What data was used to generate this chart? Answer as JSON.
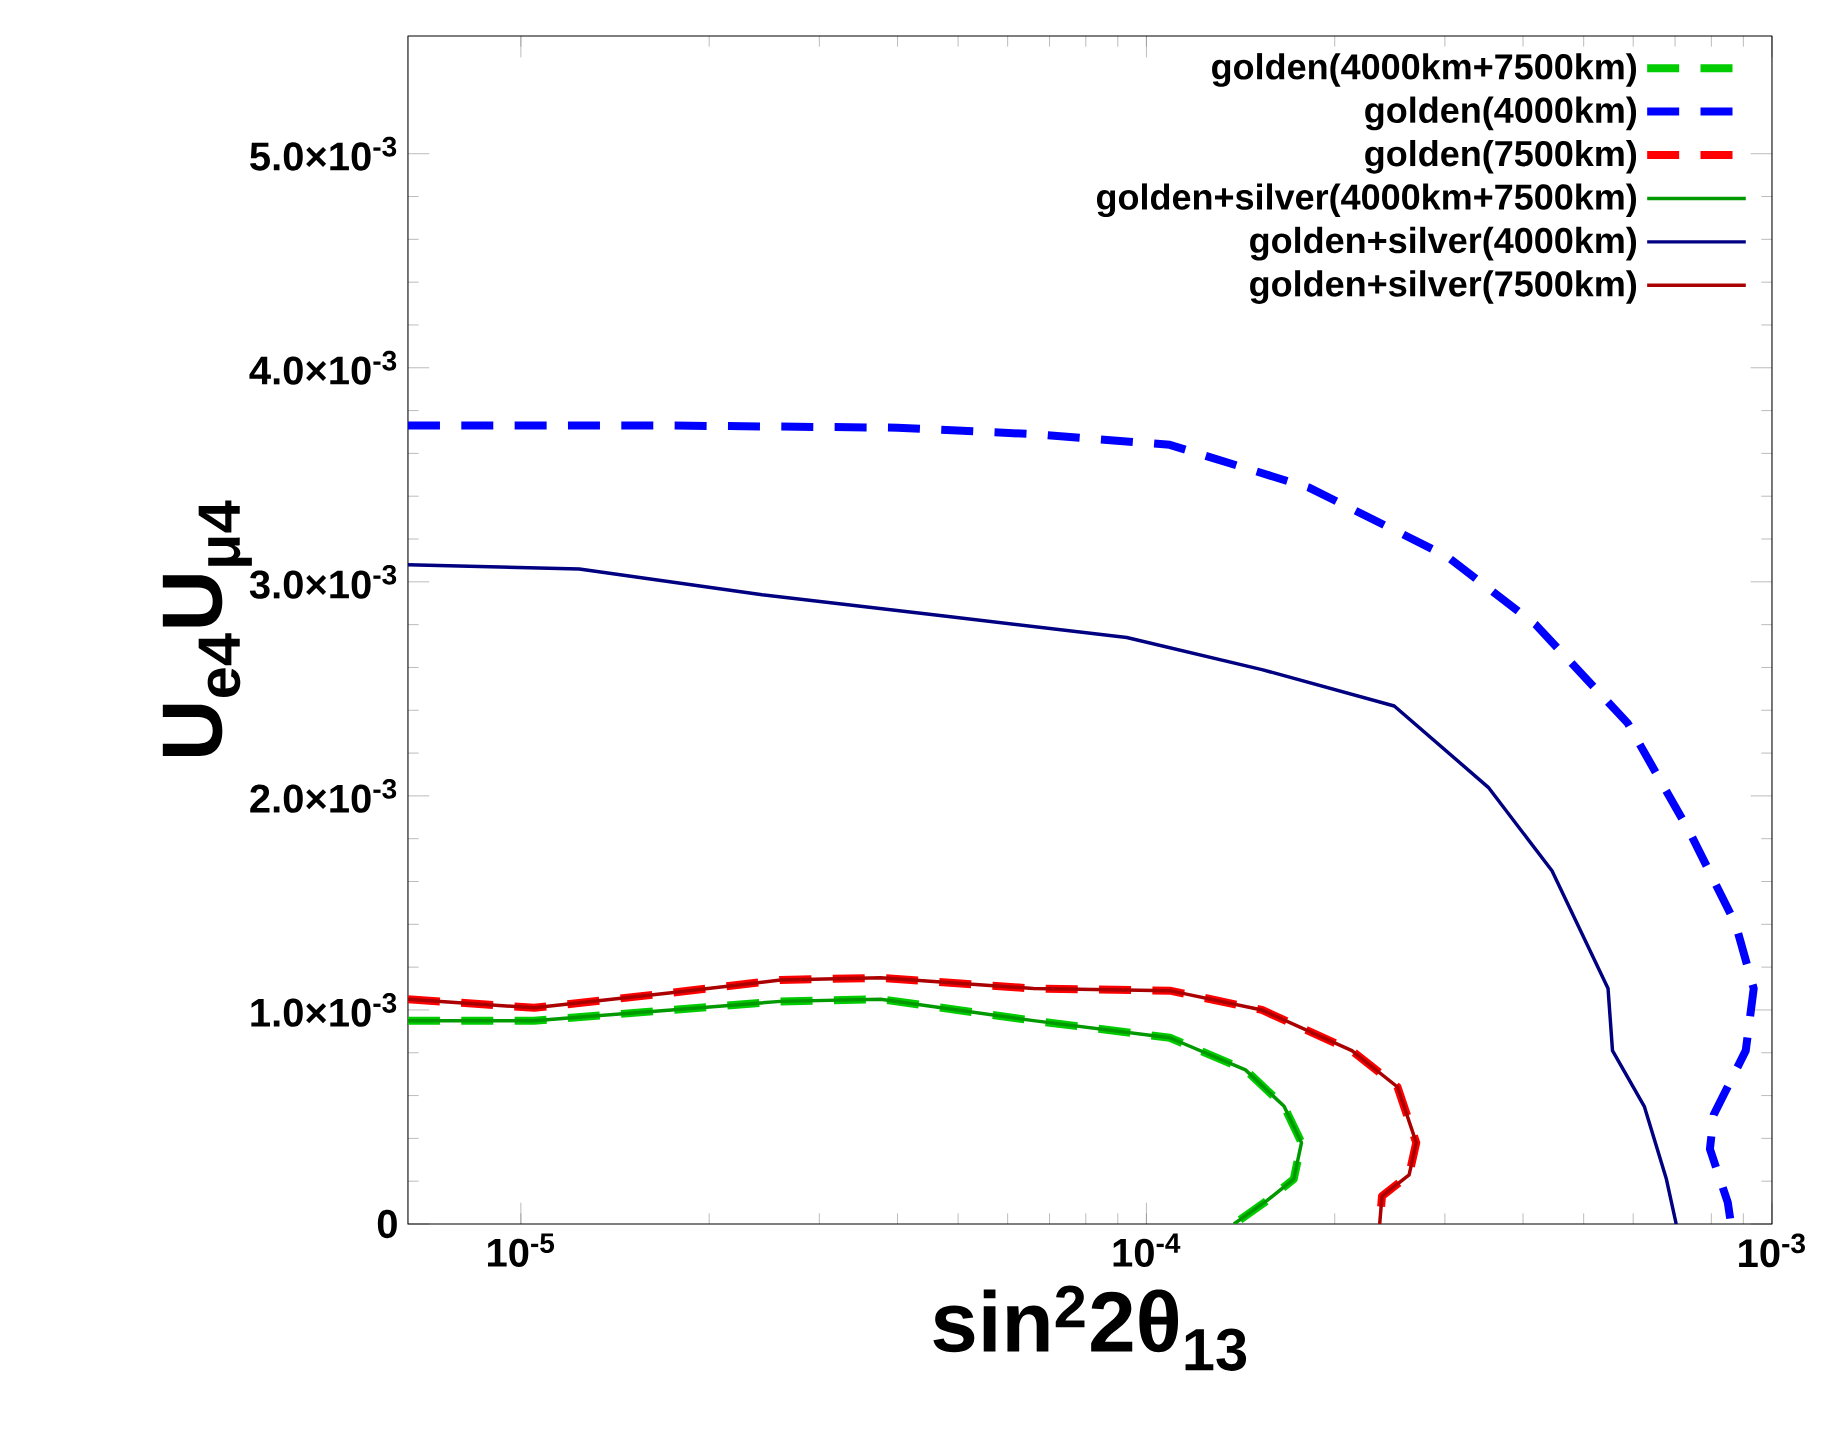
{
  "chart_data": {
    "type": "line",
    "xlabel": "sin$^{2}$2θ$_{13}$",
    "ylabel": "U$_{e4}$U$_{μ4}$",
    "log": "x",
    "xlim": [
      6.6e-06,
      0.001
    ],
    "xticks": [
      {
        "value": 1e-05,
        "label": "10$^{-5}$"
      },
      {
        "value": 0.0001,
        "label": "10$^{-4}$"
      },
      {
        "value": 0.001,
        "label": "10$^{-3}$"
      }
    ],
    "ylim": [
      0,
      0.00555
    ],
    "yticks": [
      0,
      {
        "value": 0.001,
        "label": "1.0×10$^{-3}$"
      },
      {
        "value": 0.002,
        "label": "2.0×10$^{-3}$"
      },
      {
        "value": 0.003,
        "label": "3.0×10$^{-3}$"
      },
      {
        "value": 0.004,
        "label": "4.0×10$^{-3}$"
      },
      {
        "value": 0.005,
        "label": "5.0×10$^{-3}$"
      }
    ],
    "legend": "top right",
    "series": [
      {
        "name": "golden(4000km+7500km)",
        "color": "#00cc00",
        "line_style": "dashed",
        "x": [
          6.6e-06,
          1.05e-05,
          1.74e-05,
          2.6e-05,
          3.76e-05,
          6.6e-05,
          0.000109,
          0.000144,
          0.000166,
          0.000177,
          0.000172,
          0.000156,
          0.000138
        ],
        "values": [
          0.00095,
          0.00095,
          0.001,
          0.00104,
          0.00105,
          0.00095,
          0.00087,
          0.00072,
          0.00055,
          0.00038,
          0.00021,
          0.00011,
          0
        ]
      },
      {
        "name": "golden(4000km)",
        "color": "#0000ff",
        "line_style": "dashed",
        "x": [
          6.6e-06,
          1.73e-05,
          4e-05,
          6.6e-05,
          0.000109,
          0.000182,
          0.000302,
          0.000419,
          0.000588,
          0.000739,
          0.000875,
          0.000935,
          0.000908,
          0.000807,
          0.000796,
          0.00085,
          0.00086
        ],
        "values": [
          0.00373,
          0.00373,
          0.00372,
          0.00369,
          0.00364,
          0.00344,
          0.00312,
          0.0028,
          0.00234,
          0.00183,
          0.0014,
          0.0011,
          0.00081,
          0.00051,
          0.00035,
          0.0001,
          0
        ]
      },
      {
        "name": "golden(7500km)",
        "color": "#ff0000",
        "line_style": "dashed",
        "x": [
          6.6e-06,
          1.05e-05,
          1.74e-05,
          2.6e-05,
          3.76e-05,
          6.6e-05,
          0.000109,
          0.000153,
          0.000213,
          0.000252,
          0.00027,
          0.000263,
          0.000238,
          0.000236
        ],
        "values": [
          0.00105,
          0.00101,
          0.00108,
          0.00114,
          0.00115,
          0.0011,
          0.00109,
          0.001,
          0.00081,
          0.00064,
          0.00038,
          0.00023,
          0.00013,
          0
        ]
      },
      {
        "name": "golden+silver(4000km+7500km)",
        "color": "#009900",
        "line_style": "solid",
        "x": [
          6.6e-06,
          1.05e-05,
          1.74e-05,
          2.6e-05,
          3.76e-05,
          6.6e-05,
          0.000109,
          0.000144,
          0.000166,
          0.000177,
          0.000172,
          0.000156,
          0.000138
        ],
        "values": [
          0.00095,
          0.00095,
          0.001,
          0.00104,
          0.00105,
          0.00095,
          0.00087,
          0.00072,
          0.00055,
          0.00038,
          0.00021,
          0.00011,
          0
        ]
      },
      {
        "name": "golden+silver(4000km)",
        "color": "#000080",
        "line_style": "solid",
        "x": [
          6.6e-06,
          1.24e-05,
          2.43e-05,
          4.75e-05,
          9.3e-05,
          0.000153,
          0.000249,
          0.000352,
          0.000445,
          0.000547,
          0.000556,
          0.000625,
          0.000678,
          0.000703
        ],
        "values": [
          0.00308,
          0.00306,
          0.00294,
          0.00284,
          0.00274,
          0.00259,
          0.00242,
          0.00204,
          0.00165,
          0.0011,
          0.00081,
          0.00055,
          0.00021,
          0
        ]
      },
      {
        "name": "golden+silver(7500km)",
        "color": "#aa0000",
        "line_style": "solid",
        "x": [
          6.6e-06,
          1.05e-05,
          1.74e-05,
          2.6e-05,
          3.76e-05,
          6.6e-05,
          0.000109,
          0.000153,
          0.000213,
          0.000252,
          0.00027,
          0.000263,
          0.000238,
          0.000236
        ],
        "values": [
          0.00105,
          0.00101,
          0.00108,
          0.00114,
          0.00115,
          0.0011,
          0.00109,
          0.001,
          0.00081,
          0.00064,
          0.00038,
          0.00023,
          0.00013,
          0
        ]
      }
    ]
  }
}
